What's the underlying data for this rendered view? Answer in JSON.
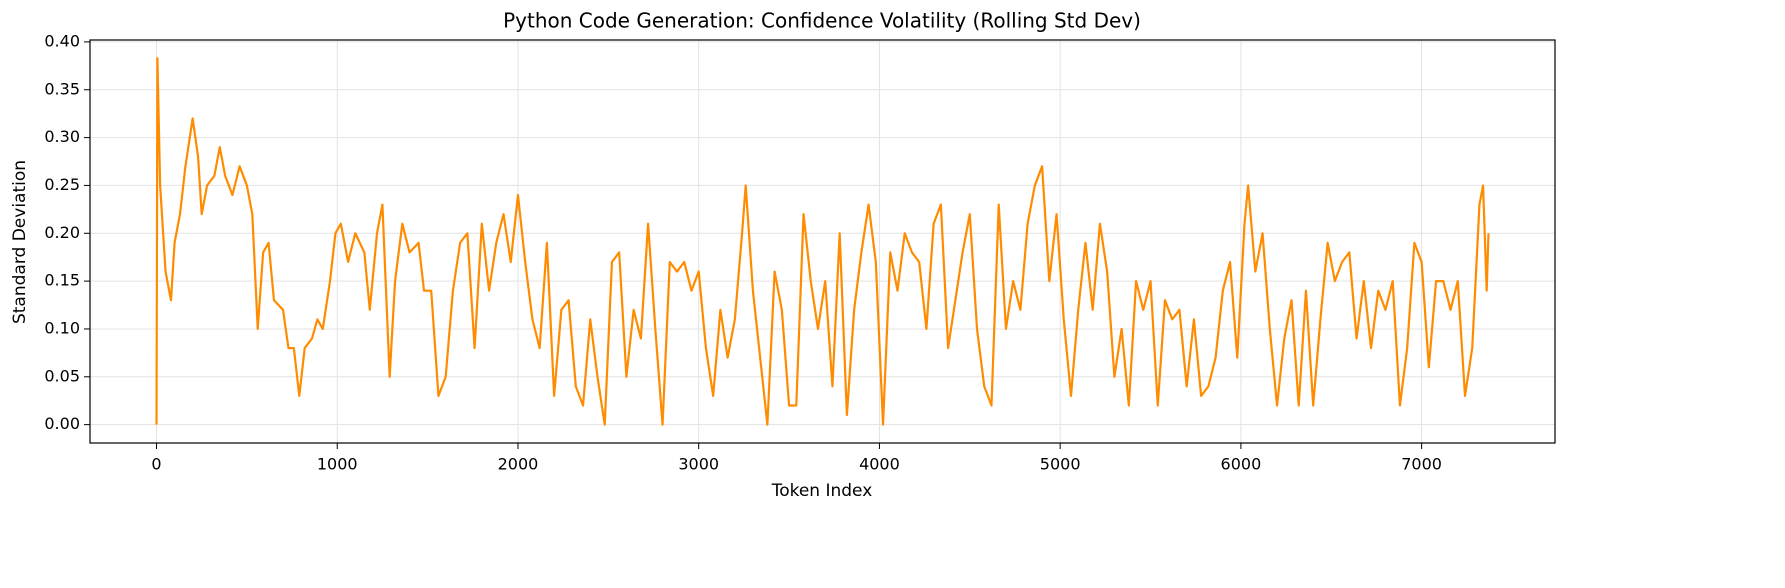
{
  "chart_data": {
    "type": "line",
    "title": "Python Code Generation: Confidence Volatility (Rolling Std Dev)",
    "xlabel": "Token Index",
    "ylabel": "Standard Deviation",
    "color": "#ff8c00",
    "grid": true,
    "xlim": [
      -368,
      7738
    ],
    "ylim": [
      -0.0192,
      0.402
    ],
    "xticks": [
      0,
      1000,
      2000,
      3000,
      4000,
      5000,
      6000,
      7000
    ],
    "yticks": [
      {
        "value": 0,
        "label": "0.00"
      },
      {
        "value": 0.05,
        "label": "0.05"
      },
      {
        "value": 0.1,
        "label": "0.10"
      },
      {
        "value": 0.15,
        "label": "0.15"
      },
      {
        "value": 0.2,
        "label": "0.20"
      },
      {
        "value": 0.25,
        "label": "0.25"
      },
      {
        "value": 0.3,
        "label": "0.30"
      },
      {
        "value": 0.35,
        "label": "0.35"
      },
      {
        "value": 0.4,
        "label": "0.40"
      }
    ],
    "x": [
      0,
      5,
      20,
      50,
      80,
      100,
      130,
      160,
      200,
      230,
      250,
      280,
      320,
      350,
      380,
      420,
      460,
      500,
      530,
      560,
      590,
      620,
      650,
      700,
      730,
      760,
      790,
      820,
      860,
      890,
      920,
      960,
      990,
      1020,
      1060,
      1100,
      1150,
      1180,
      1220,
      1250,
      1290,
      1320,
      1360,
      1400,
      1450,
      1480,
      1520,
      1560,
      1600,
      1640,
      1680,
      1720,
      1760,
      1800,
      1840,
      1880,
      1920,
      1960,
      2000,
      2040,
      2080,
      2120,
      2160,
      2200,
      2240,
      2280,
      2320,
      2360,
      2400,
      2440,
      2480,
      2520,
      2560,
      2600,
      2640,
      2680,
      2720,
      2760,
      2800,
      2840,
      2880,
      2920,
      2960,
      3000,
      3040,
      3080,
      3120,
      3160,
      3200,
      3240,
      3260,
      3300,
      3340,
      3380,
      3420,
      3460,
      3500,
      3540,
      3580,
      3620,
      3660,
      3700,
      3740,
      3780,
      3820,
      3860,
      3900,
      3940,
      3980,
      4020,
      4060,
      4100,
      4140,
      4180,
      4220,
      4260,
      4300,
      4340,
      4380,
      4420,
      4460,
      4500,
      4540,
      4580,
      4620,
      4660,
      4700,
      4740,
      4780,
      4820,
      4860,
      4900,
      4940,
      4980,
      5020,
      5060,
      5100,
      5140,
      5180,
      5220,
      5260,
      5300,
      5340,
      5380,
      5420,
      5460,
      5500,
      5540,
      5580,
      5620,
      5660,
      5700,
      5740,
      5780,
      5820,
      5860,
      5900,
      5940,
      5980,
      6020,
      6040,
      6080,
      6120,
      6160,
      6200,
      6240,
      6280,
      6320,
      6360,
      6400,
      6440,
      6480,
      6520,
      6560,
      6600,
      6640,
      6680,
      6720,
      6760,
      6800,
      6840,
      6880,
      6920,
      6960,
      7000,
      7040,
      7080,
      7120,
      7160,
      7200,
      7240,
      7280,
      7320,
      7340,
      7360,
      7370
    ],
    "values": [
      0.0,
      0.383,
      0.25,
      0.16,
      0.13,
      0.19,
      0.22,
      0.27,
      0.32,
      0.28,
      0.22,
      0.25,
      0.26,
      0.29,
      0.26,
      0.24,
      0.27,
      0.25,
      0.22,
      0.1,
      0.18,
      0.19,
      0.13,
      0.12,
      0.08,
      0.08,
      0.03,
      0.08,
      0.09,
      0.11,
      0.1,
      0.15,
      0.2,
      0.21,
      0.17,
      0.2,
      0.18,
      0.12,
      0.2,
      0.23,
      0.05,
      0.15,
      0.21,
      0.18,
      0.19,
      0.14,
      0.14,
      0.03,
      0.05,
      0.14,
      0.19,
      0.2,
      0.08,
      0.21,
      0.14,
      0.19,
      0.22,
      0.17,
      0.24,
      0.17,
      0.11,
      0.08,
      0.19,
      0.03,
      0.12,
      0.13,
      0.04,
      0.02,
      0.11,
      0.05,
      0.0,
      0.17,
      0.18,
      0.05,
      0.12,
      0.09,
      0.21,
      0.1,
      0.0,
      0.17,
      0.16,
      0.17,
      0.14,
      0.16,
      0.08,
      0.03,
      0.12,
      0.07,
      0.11,
      0.2,
      0.25,
      0.14,
      0.07,
      0.0,
      0.16,
      0.12,
      0.02,
      0.02,
      0.22,
      0.15,
      0.1,
      0.15,
      0.04,
      0.2,
      0.01,
      0.12,
      0.18,
      0.23,
      0.17,
      0.0,
      0.18,
      0.14,
      0.2,
      0.18,
      0.17,
      0.1,
      0.21,
      0.23,
      0.08,
      0.13,
      0.18,
      0.22,
      0.1,
      0.04,
      0.02,
      0.23,
      0.1,
      0.15,
      0.12,
      0.21,
      0.25,
      0.27,
      0.15,
      0.22,
      0.11,
      0.03,
      0.12,
      0.19,
      0.12,
      0.21,
      0.16,
      0.05,
      0.1,
      0.02,
      0.15,
      0.12,
      0.15,
      0.02,
      0.13,
      0.11,
      0.12,
      0.04,
      0.11,
      0.03,
      0.04,
      0.07,
      0.14,
      0.17,
      0.07,
      0.21,
      0.25,
      0.16,
      0.2,
      0.1,
      0.02,
      0.09,
      0.13,
      0.02,
      0.14,
      0.02,
      0.11,
      0.19,
      0.15,
      0.17,
      0.18,
      0.09,
      0.15,
      0.08,
      0.14,
      0.12,
      0.15,
      0.02,
      0.08,
      0.19,
      0.17,
      0.06,
      0.15,
      0.15,
      0.12,
      0.15,
      0.03,
      0.08,
      0.23,
      0.25,
      0.14,
      0.2
    ]
  }
}
